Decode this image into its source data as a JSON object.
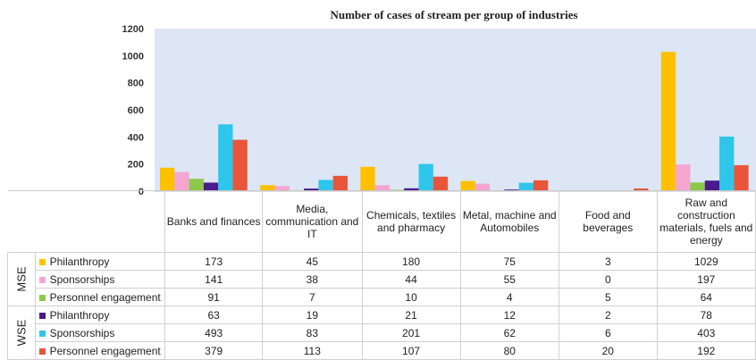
{
  "chart_data": {
    "type": "bar",
    "title": "Number of cases of stream per group of industries",
    "xlabel": "",
    "ylabel": "",
    "ylim": [
      0,
      1200
    ],
    "yticks": [
      0,
      200,
      400,
      600,
      800,
      1000,
      1200
    ],
    "grid": false,
    "categories": [
      "Banks and finances",
      "Media, communication and IT",
      "Chemicals, textiles and pharmacy",
      "Metal, machine and Automobiles",
      "Food and beverages",
      "Raw and construction materials, fuels and energy"
    ],
    "groups": [
      {
        "name": "MSE",
        "series": [
          {
            "name": "Philanthropy",
            "color": "#FFC000",
            "values": [
              173,
              45,
              180,
              75,
              3,
              1029
            ]
          },
          {
            "name": "Sponsorships",
            "color": "#F4A6D0",
            "values": [
              141,
              38,
              44,
              55,
              0,
              197
            ]
          },
          {
            "name": "Personnel engagement",
            "color": "#8CC84A",
            "values": [
              91,
              7,
              10,
              4,
              5,
              64
            ]
          }
        ]
      },
      {
        "name": "WSE",
        "series": [
          {
            "name": "Philanthropy",
            "color": "#4B1A8C",
            "values": [
              63,
              19,
              21,
              12,
              2,
              78
            ]
          },
          {
            "name": "Sponsorships",
            "color": "#2EC6EA",
            "values": [
              493,
              83,
              201,
              62,
              6,
              403
            ]
          },
          {
            "name": "Personnel engagement",
            "color": "#E8553A",
            "values": [
              379,
              113,
              107,
              80,
              20,
              192
            ]
          }
        ]
      }
    ]
  }
}
